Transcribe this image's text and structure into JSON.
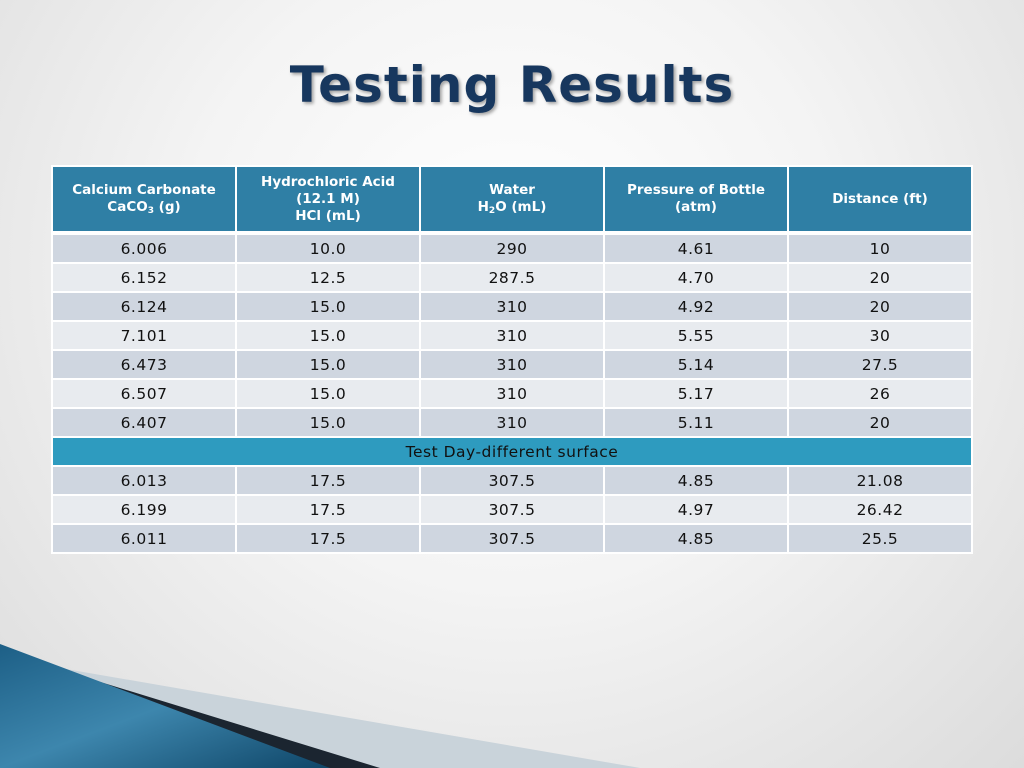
{
  "title": "Testing Results",
  "table": {
    "headers": [
      {
        "line1": "Calcium Carbonate",
        "line2_prefix": "CaCO",
        "line2_sub": "3",
        "line2_suffix": " (g)"
      },
      {
        "line1": "Hydrochloric Acid",
        "line2": "(12.1 M)",
        "line3": "HCl (mL)"
      },
      {
        "line1": "Water",
        "line2_prefix": "H",
        "line2_sub": "2",
        "line2_suffix": "O (mL)"
      },
      {
        "line1": "Pressure of Bottle",
        "line2": "(atm)"
      },
      {
        "line1": "Distance (ft)"
      }
    ],
    "rows": [
      [
        "6.006",
        "10.0",
        "290",
        "4.61",
        "10"
      ],
      [
        "6.152",
        "12.5",
        "287.5",
        "4.70",
        "20"
      ],
      [
        "6.124",
        "15.0",
        "310",
        "4.92",
        "20"
      ],
      [
        "7.101",
        "15.0",
        "310",
        "5.55",
        "30"
      ],
      [
        "6.473",
        "15.0",
        "310",
        "5.14",
        "27.5"
      ],
      [
        "6.507",
        "15.0",
        "310",
        "5.17",
        "26"
      ],
      [
        "6.407",
        "15.0",
        "310",
        "5.11",
        "20"
      ]
    ],
    "divider_label": "Test Day-different surface",
    "rows_after": [
      [
        "6.013",
        "17.5",
        "307.5",
        "4.85",
        "21.08"
      ],
      [
        "6.199",
        "17.5",
        "307.5",
        "4.97",
        "26.42"
      ],
      [
        "6.011",
        "17.5",
        "307.5",
        "4.85",
        "25.5"
      ]
    ]
  },
  "colors": {
    "title": "#17375e",
    "header_bg": "#2f7fa5",
    "divider_bg": "#2e9bbf",
    "row_dark": "#cfd6e0",
    "row_light": "#e8ebef"
  }
}
